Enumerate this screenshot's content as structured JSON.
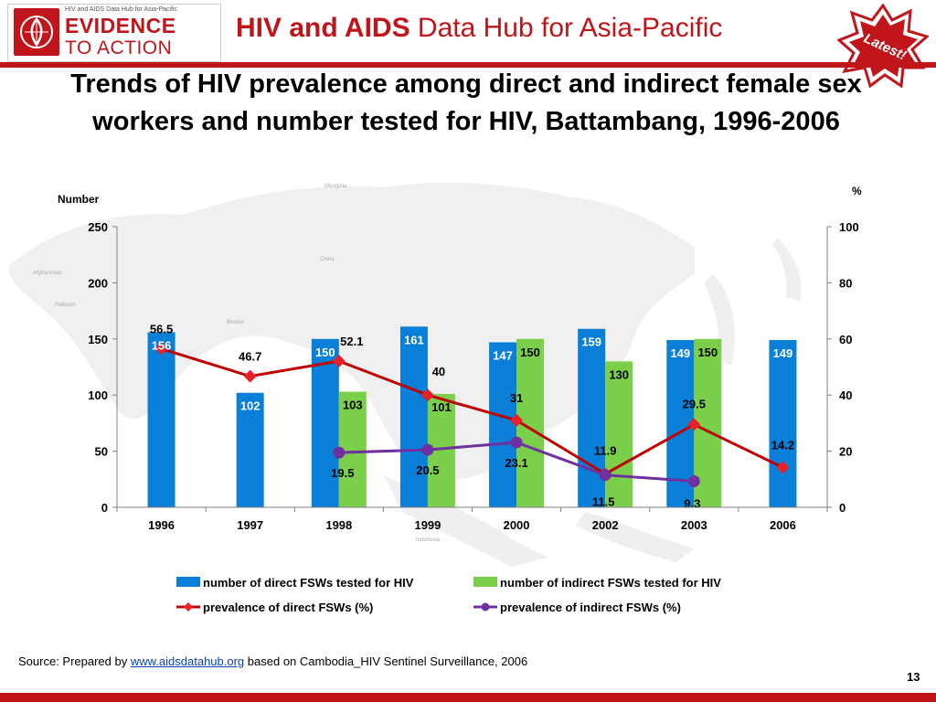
{
  "header": {
    "logo_small_text": "HIV and AIDS Data Hub for Asia-Pacific",
    "logo_evidence": "EVIDENCE",
    "logo_to_action": "TO ACTION",
    "hub_title_bold": "HIV and AIDS",
    "hub_title_rest": " Data Hub for Asia-Pacific",
    "badge_label": "Latest!"
  },
  "title": "Trends of HIV prevalence among direct and indirect female sex workers and number tested for HIV, Battambang, 1996-2006",
  "chart_data": {
    "type": "bar",
    "title": "Trends of HIV prevalence among direct and indirect female sex workers and number tested for HIV, Battambang, 1996-2006",
    "categories": [
      "1996",
      "1997",
      "1998",
      "1999",
      "2000",
      "2002",
      "2003",
      "2006"
    ],
    "ylabel_left": "Number",
    "ylabel_right": "%",
    "ylim_left": [
      0,
      250
    ],
    "ylim_right": [
      0,
      100
    ],
    "yticks_left": [
      "0",
      "50",
      "100",
      "150",
      "200",
      "250"
    ],
    "yticks_right": [
      "0",
      "20",
      "40",
      "60",
      "80",
      "100"
    ],
    "grid": false,
    "legend_position": "bottom",
    "series": [
      {
        "name": "number of direct FSWs tested for HIV",
        "type": "bar",
        "axis": "left",
        "color": "#0a7fd8",
        "values": [
          156,
          102,
          150,
          161,
          147,
          159,
          149,
          149
        ],
        "labels": [
          "156",
          "102",
          "150",
          "161",
          "147",
          "159",
          "149",
          "149"
        ]
      },
      {
        "name": "number of indirect FSWs tested for HIV",
        "type": "bar",
        "axis": "left",
        "color": "#7ccf4a",
        "values": [
          null,
          null,
          103,
          101,
          150,
          130,
          150,
          null
        ],
        "labels": [
          "",
          "",
          "103",
          "101",
          "150",
          "130",
          "150",
          ""
        ]
      },
      {
        "name": "prevalence of direct FSWs (%)",
        "type": "line",
        "axis": "right",
        "color": "#c00000",
        "marker_color": "#e8202a",
        "values": [
          56.5,
          46.7,
          52.1,
          40,
          31,
          11.9,
          29.5,
          14.2
        ],
        "labels": [
          "56.5",
          "46.7",
          "52.1",
          "40",
          "31",
          "11.9",
          "29.5",
          "14.2"
        ]
      },
      {
        "name": "prevalence of indirect FSWs (%)",
        "type": "line",
        "axis": "right",
        "color": "#7030a0",
        "marker_color": "#7030a0",
        "values": [
          null,
          null,
          19.5,
          20.5,
          23.1,
          11.5,
          9.3,
          null
        ],
        "labels": [
          "",
          "",
          "19.5",
          "20.5",
          "23.1",
          "11.5",
          "9.3",
          ""
        ]
      }
    ]
  },
  "source": {
    "prefix": "Source: Prepared by ",
    "link_text": "www.aidsdatahub.org",
    "suffix": "  based on Cambodia_HIV Sentinel Surveillance, 2006"
  },
  "page_number": "13"
}
